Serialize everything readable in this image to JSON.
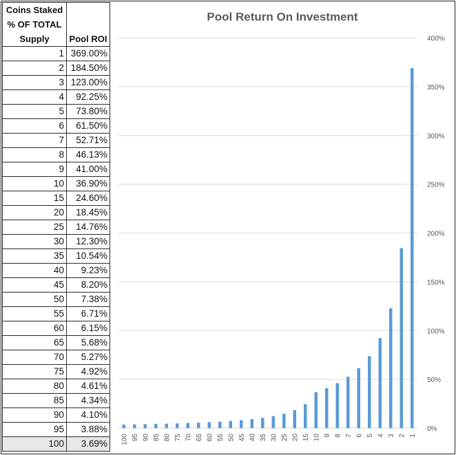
{
  "table": {
    "header_col1_line1": "Coins Staked",
    "header_col1_line2": "% OF TOTAL",
    "header_col1_line3": "Supply",
    "header_col2": "Pool ROI",
    "rows": [
      {
        "pct": "1",
        "roi": "369.00%"
      },
      {
        "pct": "2",
        "roi": "184.50%"
      },
      {
        "pct": "3",
        "roi": "123.00%"
      },
      {
        "pct": "4",
        "roi": "92.25%"
      },
      {
        "pct": "5",
        "roi": "73.80%"
      },
      {
        "pct": "6",
        "roi": "61.50%"
      },
      {
        "pct": "7",
        "roi": "52.71%"
      },
      {
        "pct": "8",
        "roi": "46.13%"
      },
      {
        "pct": "9",
        "roi": "41.00%"
      },
      {
        "pct": "10",
        "roi": "36.90%"
      },
      {
        "pct": "15",
        "roi": "24.60%"
      },
      {
        "pct": "20",
        "roi": "18.45%"
      },
      {
        "pct": "25",
        "roi": "14.76%"
      },
      {
        "pct": "30",
        "roi": "12.30%"
      },
      {
        "pct": "35",
        "roi": "10.54%"
      },
      {
        "pct": "40",
        "roi": "9.23%"
      },
      {
        "pct": "45",
        "roi": "8.20%"
      },
      {
        "pct": "50",
        "roi": "7.38%"
      },
      {
        "pct": "55",
        "roi": "6.71%"
      },
      {
        "pct": "60",
        "roi": "6.15%"
      },
      {
        "pct": "65",
        "roi": "5.68%"
      },
      {
        "pct": "70",
        "roi": "5.27%"
      },
      {
        "pct": "75",
        "roi": "4.92%"
      },
      {
        "pct": "80",
        "roi": "4.61%"
      },
      {
        "pct": "85",
        "roi": "4.34%"
      },
      {
        "pct": "90",
        "roi": "4.10%"
      },
      {
        "pct": "95",
        "roi": "3.88%"
      },
      {
        "pct": "100",
        "roi": "3.69%"
      }
    ]
  },
  "chart_data": {
    "type": "bar",
    "title": "Pool Return On Investment",
    "xlabel": "",
    "ylabel": "",
    "categories": [
      "100",
      "95",
      "90",
      "85",
      "80",
      "75",
      "70",
      "65",
      "60",
      "55",
      "50",
      "45",
      "40",
      "35",
      "30",
      "25",
      "20",
      "15",
      "10",
      "9",
      "8",
      "7",
      "6",
      "5",
      "4",
      "3",
      "2",
      "1"
    ],
    "values": [
      3.69,
      3.88,
      4.1,
      4.34,
      4.61,
      4.92,
      5.27,
      5.68,
      6.15,
      6.71,
      7.38,
      8.2,
      9.23,
      10.54,
      12.3,
      14.76,
      18.45,
      24.6,
      36.9,
      41.0,
      46.13,
      52.71,
      61.5,
      73.8,
      92.25,
      123.0,
      184.5,
      369.0
    ],
    "ylim": [
      0,
      400
    ],
    "yticks": [
      0,
      50,
      100,
      150,
      200,
      250,
      300,
      350,
      400
    ],
    "ytick_labels": [
      "0%",
      "50%",
      "100%",
      "150%",
      "200%",
      "250%",
      "300%",
      "350%",
      "400%"
    ],
    "y_axis_side": "right",
    "grid": true,
    "bar_color": "#5b9bd5",
    "grid_color": "#d9d9d9"
  }
}
